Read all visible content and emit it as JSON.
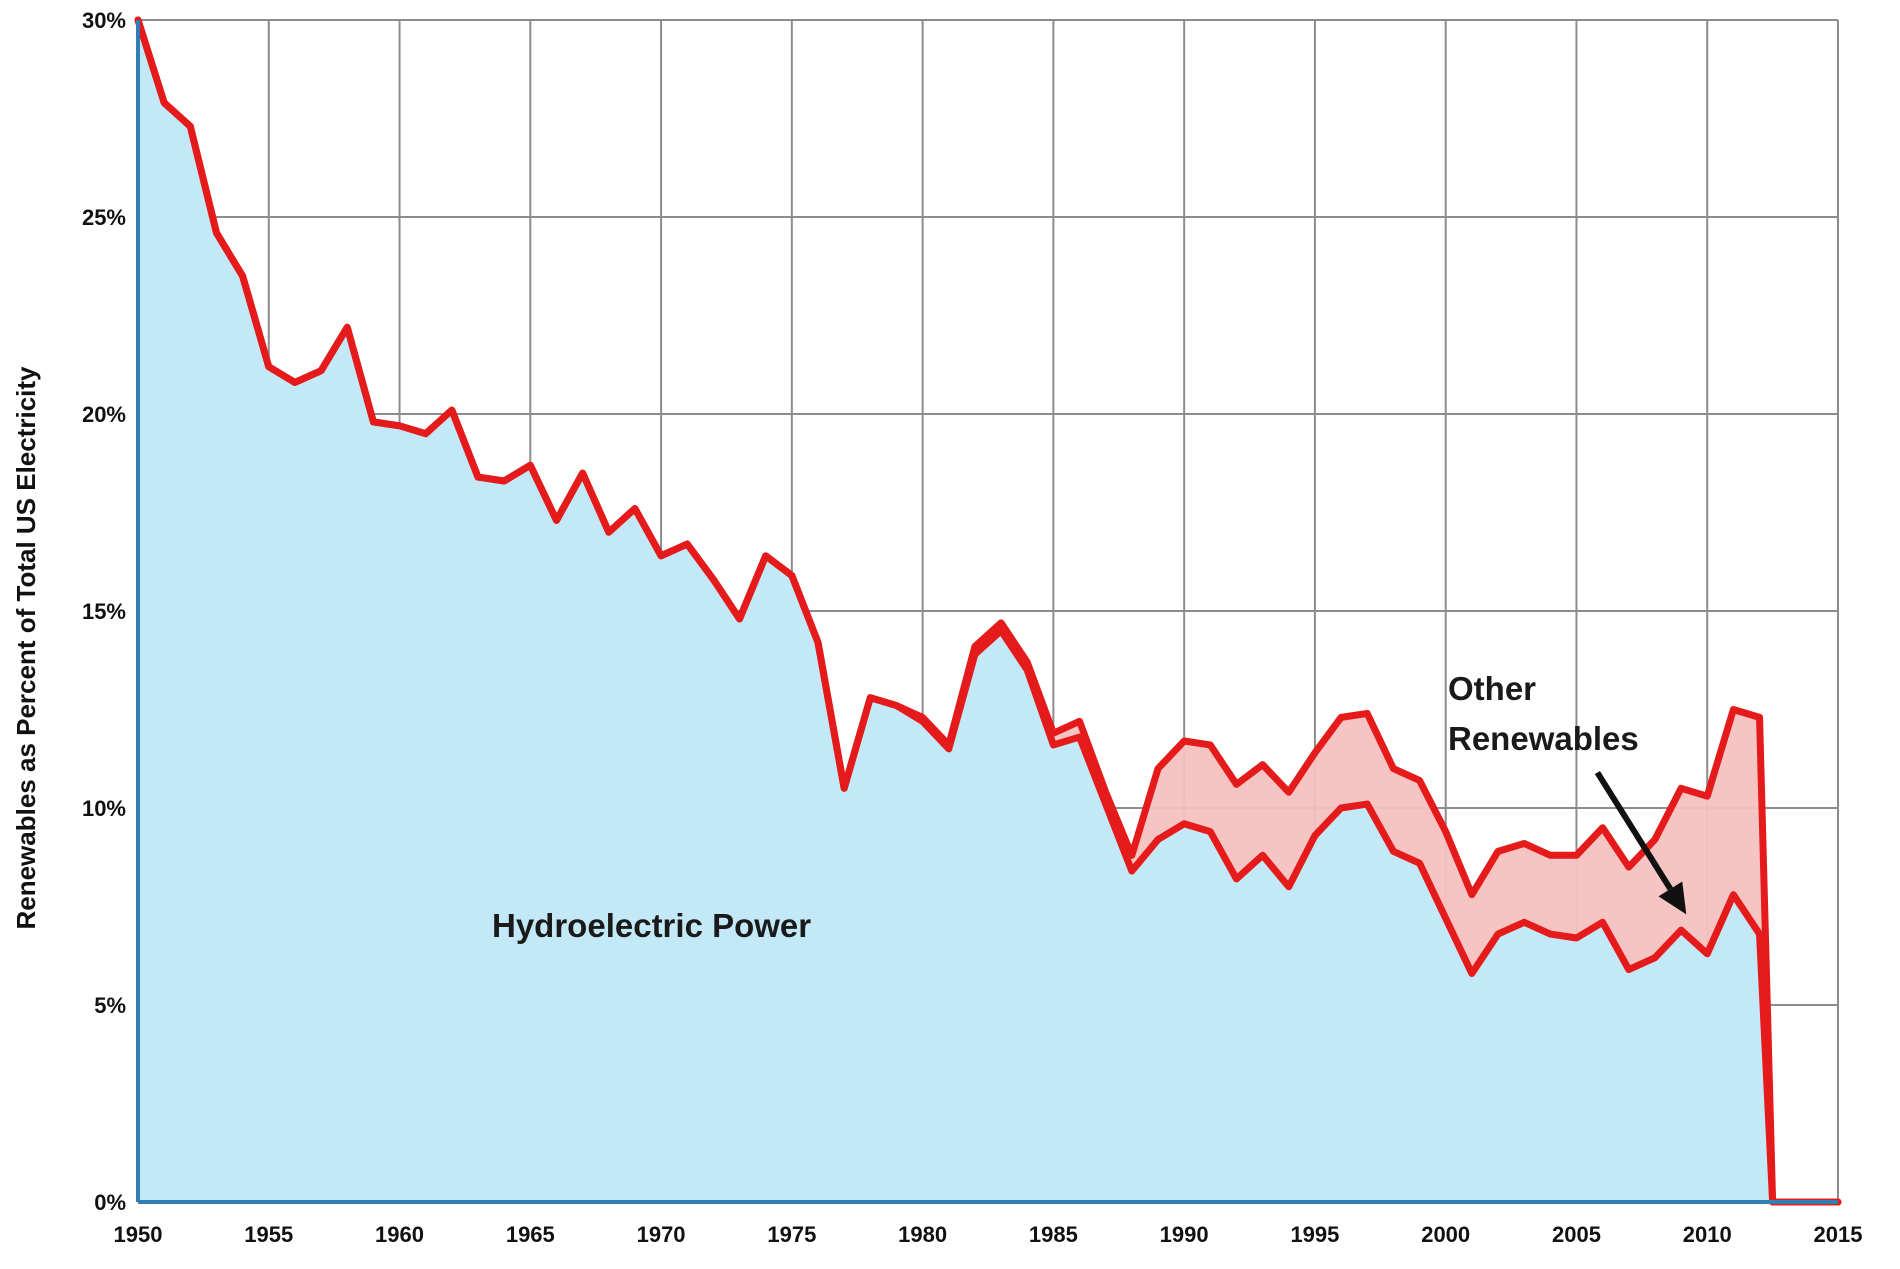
{
  "chart_data": {
    "type": "area",
    "title": "",
    "xlabel": "",
    "ylabel": "Renewables as  Percent of Total US Electricity",
    "xlim": [
      1950,
      2015
    ],
    "ylim": [
      0,
      30
    ],
    "x_ticks": [
      "1950",
      "1955",
      "1960",
      "1965",
      "1970",
      "1975",
      "1980",
      "1985",
      "1990",
      "1995",
      "2000",
      "2005",
      "2010",
      "2015"
    ],
    "y_ticks": [
      "0%",
      "5%",
      "10%",
      "15%",
      "20%",
      "25%",
      "30%"
    ],
    "grid": true,
    "legend": "none",
    "colors": {
      "hydro_fill": "#c3e9f8",
      "other_fill": "#f7c1c1",
      "line": "#e51b1b",
      "grid": "#8c8c8c",
      "axis": "#2f7fb2"
    },
    "series": [
      {
        "name": "Hydroelectric Power",
        "x": [
          1950,
          1951,
          1952,
          1953,
          1954,
          1955,
          1956,
          1957,
          1958,
          1959,
          1960,
          1961,
          1962,
          1963,
          1964,
          1965,
          1966,
          1967,
          1968,
          1969,
          1970,
          1971,
          1972,
          1973,
          1974,
          1975,
          1976,
          1977,
          1978,
          1979,
          1980,
          1981,
          1982,
          1983,
          1984,
          1985,
          1986,
          1987,
          1988,
          1989,
          1990,
          1991,
          1992,
          1993,
          1994,
          1995,
          1996,
          1997,
          1998,
          1999,
          2000,
          2001,
          2002,
          2003,
          2004,
          2005,
          2006,
          2007,
          2008,
          2009,
          2010,
          2011,
          2012,
          2012.5,
          2015
        ],
        "values": [
          30,
          27.9,
          27.3,
          24.6,
          23.5,
          21.2,
          20.8,
          21.1,
          22.2,
          19.8,
          19.7,
          19.5,
          20.1,
          18.4,
          18.3,
          18.7,
          17.3,
          18.5,
          17.0,
          17.6,
          16.4,
          16.7,
          15.8,
          14.8,
          16.4,
          15.9,
          14.2,
          10.5,
          12.8,
          12.6,
          12.2,
          11.5,
          13.9,
          14.5,
          13.5,
          11.6,
          11.8,
          10.1,
          8.4,
          9.2,
          9.6,
          9.4,
          8.2,
          8.8,
          8.0,
          9.3,
          10.0,
          10.1,
          8.9,
          8.6,
          7.2,
          5.8,
          6.8,
          7.1,
          6.8,
          6.7,
          7.1,
          5.9,
          6.2,
          6.9,
          6.3,
          7.8,
          6.8,
          0,
          0
        ]
      },
      {
        "name": "Other Renewables",
        "x": [
          1950,
          1951,
          1952,
          1953,
          1954,
          1955,
          1956,
          1957,
          1958,
          1959,
          1960,
          1961,
          1962,
          1963,
          1964,
          1965,
          1966,
          1967,
          1968,
          1969,
          1970,
          1971,
          1972,
          1973,
          1974,
          1975,
          1976,
          1977,
          1978,
          1979,
          1980,
          1981,
          1982,
          1983,
          1984,
          1985,
          1986,
          1987,
          1988,
          1989,
          1990,
          1991,
          1992,
          1993,
          1994,
          1995,
          1996,
          1997,
          1998,
          1999,
          2000,
          2001,
          2002,
          2003,
          2004,
          2005,
          2006,
          2007,
          2008,
          2009,
          2010,
          2011,
          2012,
          2012.5,
          2015
        ],
        "values": [
          30,
          27.9,
          27.3,
          24.6,
          23.5,
          21.2,
          20.8,
          21.1,
          22.2,
          19.8,
          19.7,
          19.5,
          20.1,
          18.4,
          18.3,
          18.7,
          17.3,
          18.5,
          17.0,
          17.6,
          16.4,
          16.7,
          15.8,
          14.8,
          16.4,
          15.9,
          14.2,
          10.5,
          12.8,
          12.6,
          12.3,
          11.6,
          14.1,
          14.7,
          13.7,
          11.9,
          12.2,
          10.4,
          8.8,
          11.0,
          11.7,
          11.6,
          10.6,
          11.1,
          10.4,
          11.4,
          12.3,
          12.4,
          11.0,
          10.7,
          9.4,
          7.8,
          8.9,
          9.1,
          8.8,
          8.8,
          9.5,
          8.5,
          9.2,
          10.5,
          10.3,
          12.5,
          12.3,
          0,
          0
        ]
      }
    ],
    "annotations": {
      "hydro_label": "Hydroelectric Power",
      "other_line1": "Other",
      "other_line2": "Renewables",
      "arrow_from": [
        2005.8,
        10.9
      ],
      "arrow_to": [
        2009.2,
        7.3
      ]
    }
  }
}
